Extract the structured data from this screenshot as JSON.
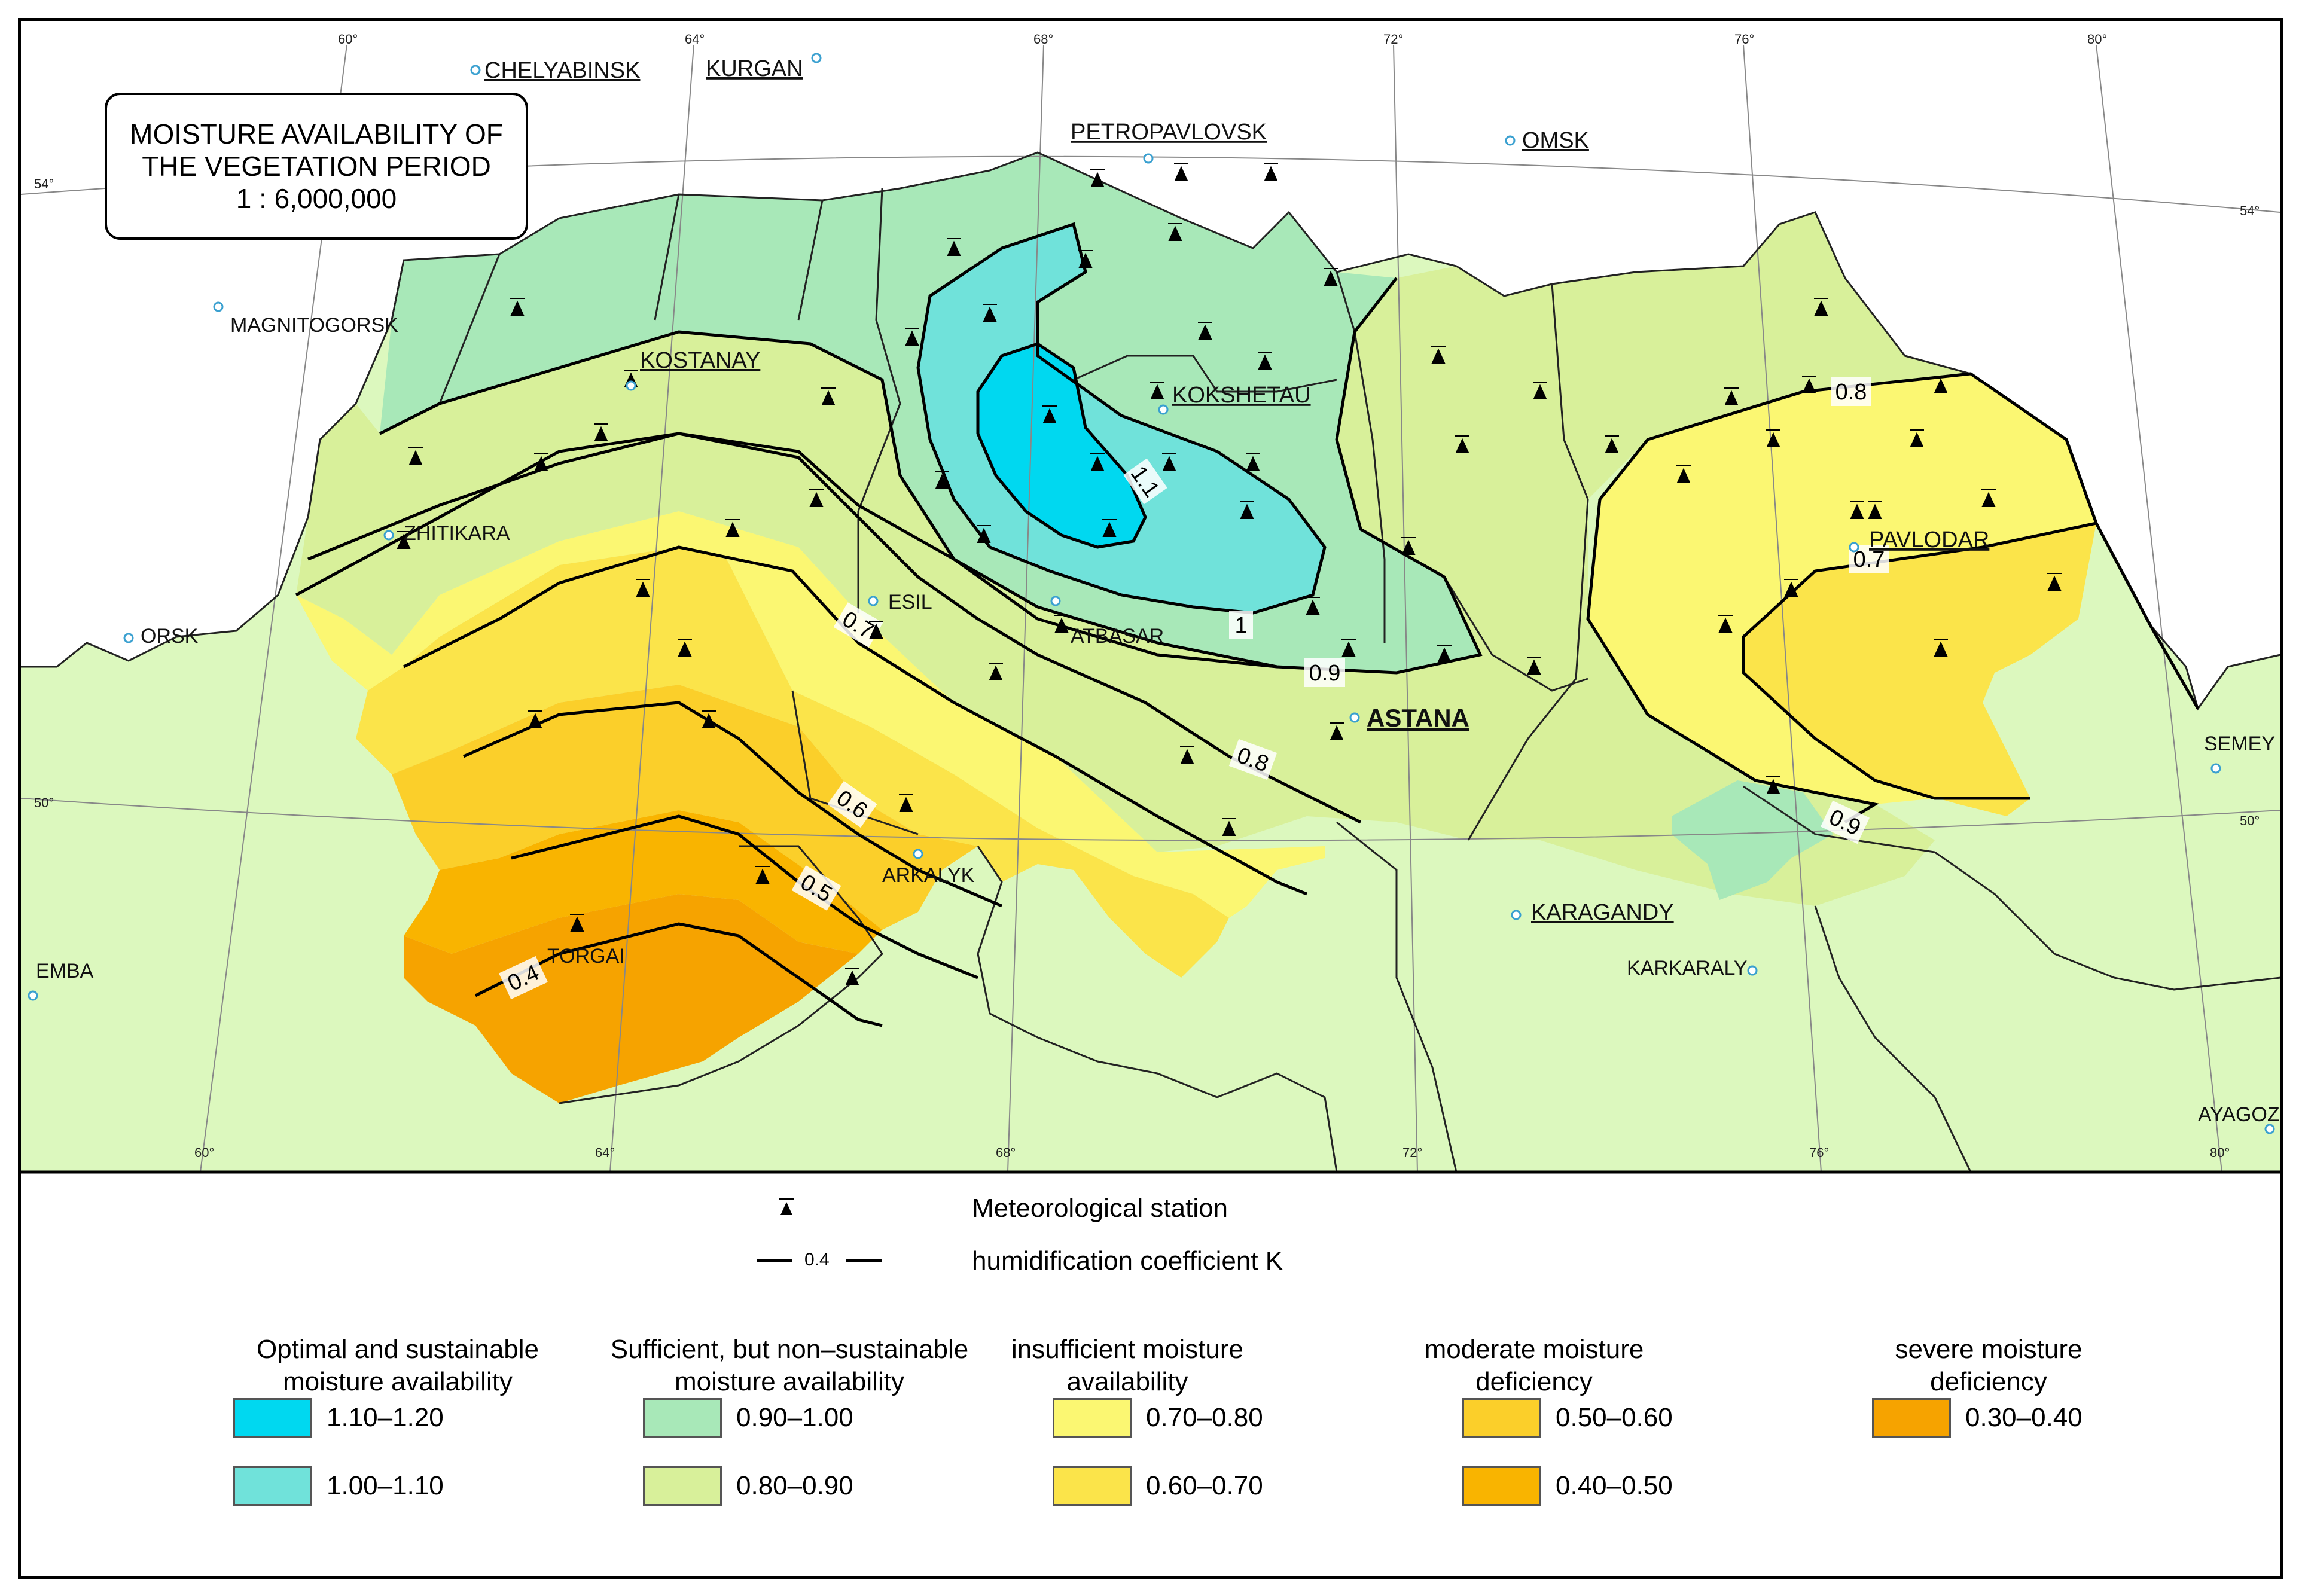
{
  "title": {
    "line1": "MOISTURE AVAILABILITY OF",
    "line2": "THE VEGETATION PERIOD",
    "scale": "1 : 6,000,000"
  },
  "cities": {
    "chelyabinsk": "CHELYABINSK",
    "kurgan": "KURGAN",
    "petropavlovsk": "PETROPAVLOVSK",
    "omsk": "OMSK",
    "magnitogorsk": "MAGNITOGORSK",
    "kostanay": "KOSTANAY",
    "kokshetau": "KOKSHETAU",
    "zhitikara": "ZHITIKARA",
    "orsk": "ORSK",
    "esil": "ESIL",
    "atbasar": "ATBASAR",
    "astana": "ASTANA",
    "pavlodar": "PAVLODAR",
    "semey": "SEMEY",
    "arkalyk": "ARKALYK",
    "karagandy": "KARAGANDY",
    "karkaraly": "KARKARALY",
    "torgai": "TORGAI",
    "emba": "EMBA",
    "ayagoz": "AYAGOZ"
  },
  "coordinates": {
    "lon_top": [
      "60°",
      "64°",
      "68°",
      "72°",
      "76°",
      "80°"
    ],
    "lon_bottom": [
      "60°",
      "64°",
      "68°",
      "72°",
      "76°",
      "80°"
    ],
    "lat_left": [
      "54°",
      "50°"
    ],
    "lat_right": [
      "54°",
      "50°"
    ]
  },
  "isolines": {
    "k11": "1.1",
    "k10": "1",
    "k09a": "0.9",
    "k09b": "0.9",
    "k08a": "0.8",
    "k08b": "0.8",
    "k07a": "0.7",
    "k07b": "0.7",
    "k06": "0.6",
    "k05": "0.5",
    "k04": "0.4"
  },
  "legend": {
    "station_label": "Meteorological station",
    "isoline_sample": "0.4",
    "isoline_label": "humidification coefficient K",
    "categories": [
      {
        "title_line1": "Optimal and sustainable",
        "title_line2": "moisture availability",
        "ranges": [
          {
            "label": "1.10–1.20",
            "color": "#00d8f0"
          },
          {
            "label": "1.00–1.10",
            "color": "#70e2da"
          }
        ]
      },
      {
        "title_line1": "Sufficient, but non–sustainable",
        "title_line2": "moisture availability",
        "ranges": [
          {
            "label": "0.90–1.00",
            "color": "#a8e8b8"
          },
          {
            "label": "0.80–0.90",
            "color": "#d8f09a"
          }
        ]
      },
      {
        "title_line1": "insufficient moisture",
        "title_line2": "availability",
        "ranges": [
          {
            "label": "0.70–0.80",
            "color": "#fbf772"
          },
          {
            "label": "0.60–0.70",
            "color": "#fbe44a"
          }
        ]
      },
      {
        "title_line1": "moderate moisture",
        "title_line2": "deficiency",
        "ranges": [
          {
            "label": "0.50–0.60",
            "color": "#fbcf2a"
          },
          {
            "label": "0.40–0.50",
            "color": "#f9b400"
          }
        ]
      },
      {
        "title_line1": "severe moisture",
        "title_line2": "deficiency",
        "ranges": [
          {
            "label": "0.30–0.40",
            "color": "#f6a300"
          }
        ]
      }
    ]
  },
  "colors": {
    "background": "#dcf8be",
    "region_outline": "#222222",
    "isoline": "#000000"
  }
}
